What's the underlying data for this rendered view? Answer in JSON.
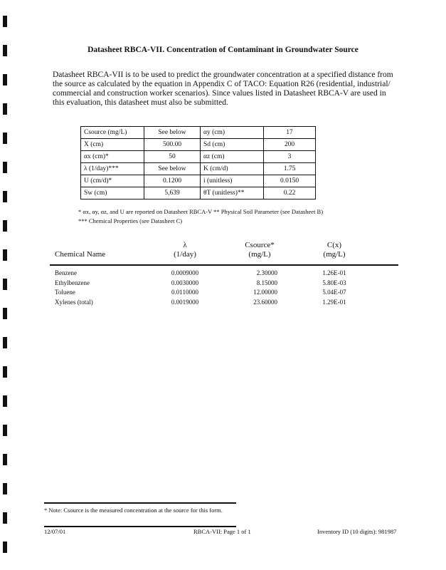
{
  "title": "Datasheet RBCA-VII.    Concentration of Contaminant in Groundwater Source",
  "intro": "Datasheet RBCA-VII is to be used to predict the groundwater concentration at a specified distance from the source as calculated by the equation in Appendix C of TACO: Equation R26 (residential, industrial/ commercial and construction worker scenarios).  Since values listed in Datasheet RBCA-V are used in this evaluation, this datasheet must also be submitted.",
  "params": [
    [
      "Csource (mg/L)",
      "See below",
      "αy (cm)",
      "17"
    ],
    [
      "X (cm)",
      "500.00",
      "Sd (cm)",
      "200"
    ],
    [
      "αx (cm)*",
      "50",
      "αz (cm)",
      "3"
    ],
    [
      "λ (1/day)***",
      "See below",
      "K (cm/d)",
      "1.75"
    ],
    [
      "U (cm/d)*",
      "0.1200",
      "i (unitless)",
      "0.0150"
    ],
    [
      "Sw (cm)",
      "5,639",
      "θT (unitless)**",
      "0.22"
    ]
  ],
  "footnote1": "*  αx, αy, αz, and U are reported on Datasheet RBCA-V      **  Physical Soil Parameter (see Datasheet B)",
  "footnote2": "*** Chemical Properties (see Datasheet C)",
  "chem_headers": {
    "name": "Chemical Name",
    "lambda": "λ",
    "lambda_unit": "(1/day)",
    "csource": "Csource*",
    "csource_unit": "(mg/L)",
    "cx": "C(x)",
    "cx_unit": "(mg/L)"
  },
  "chemicals": [
    {
      "name": "Benzene",
      "lambda": "0.0009000",
      "csource": "2.30000",
      "cx": "1.26E-01"
    },
    {
      "name": "Ethylbenzene",
      "lambda": "0.0030000",
      "csource": "8.15000",
      "cx": "5.80E-03"
    },
    {
      "name": "Toluene",
      "lambda": "0.0110000",
      "csource": "12.00000",
      "cx": "5.04E-07"
    },
    {
      "name": "Xylenes (total)",
      "lambda": "0.0019000",
      "csource": "23.60000",
      "cx": "1.29E-01"
    }
  ],
  "note": "* Note: Csource is the measured concentration at the source for this form.",
  "footer": {
    "date": "12/07/01",
    "page": "RBCA-VII: Page 1 of 1",
    "inventory": "Inventory ID (10 digits): 981987"
  }
}
